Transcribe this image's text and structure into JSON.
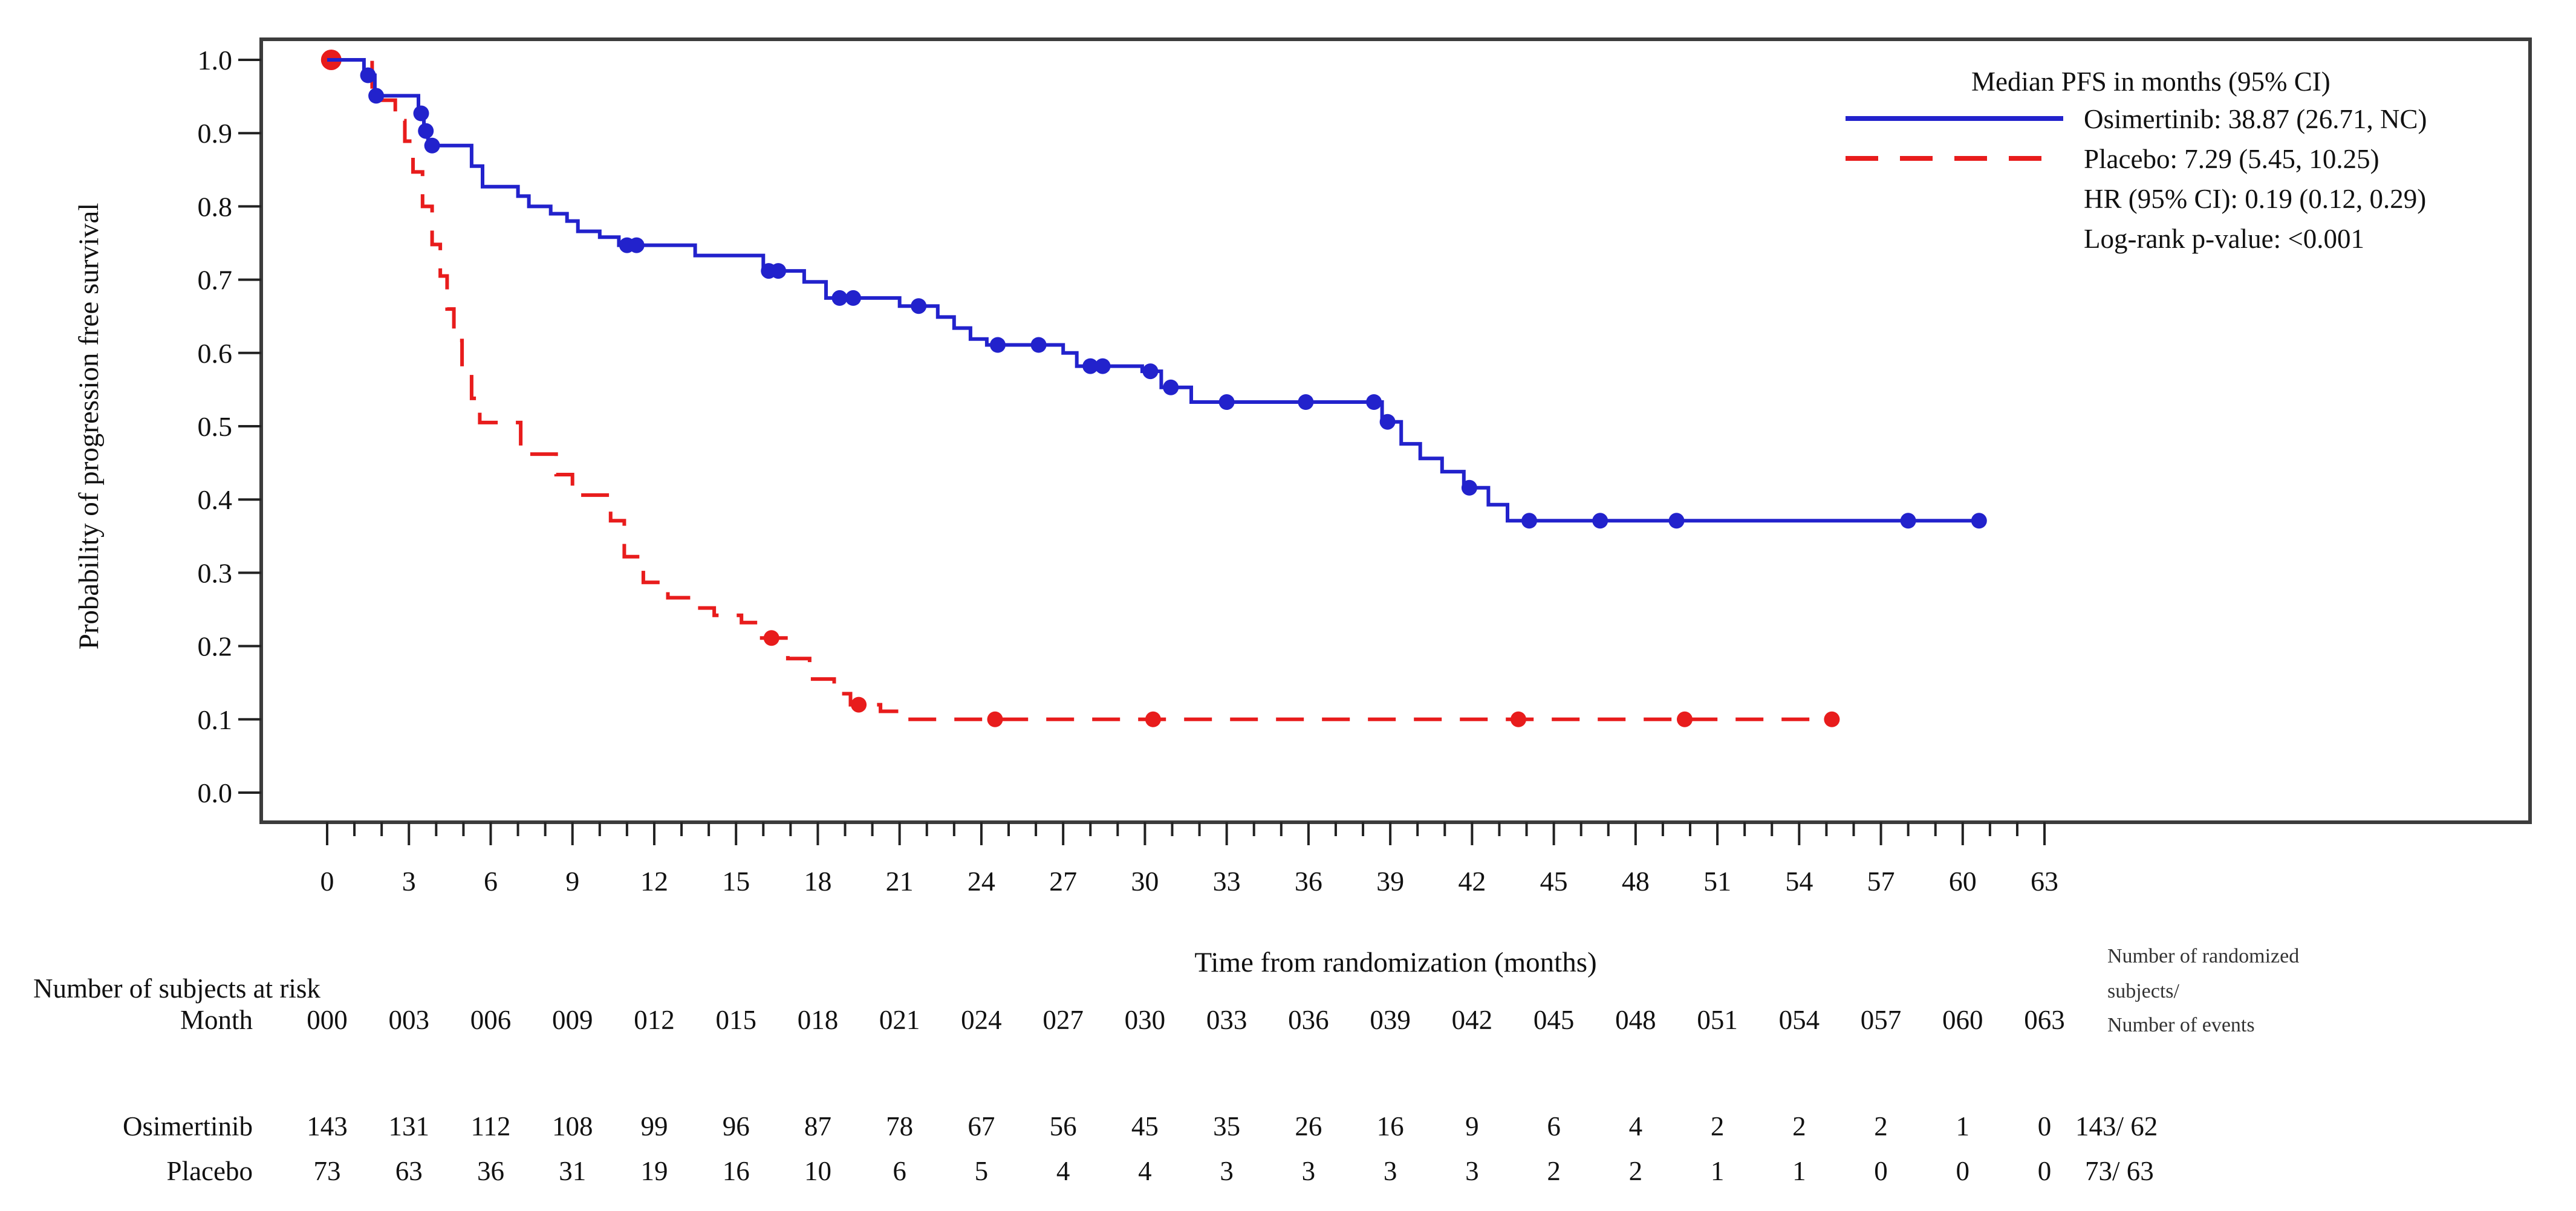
{
  "axes": {
    "x": {
      "label": "Time from randomization (months)",
      "ticks": [
        0,
        3,
        6,
        9,
        12,
        15,
        18,
        21,
        24,
        27,
        30,
        33,
        36,
        39,
        42,
        45,
        48,
        51,
        54,
        57,
        60,
        63
      ],
      "minor_step": 1,
      "range": [
        0,
        63
      ]
    },
    "y": {
      "label": "Probability of progression free survival",
      "ticks": [
        0.0,
        0.1,
        0.2,
        0.3,
        0.4,
        0.5,
        0.6,
        0.7,
        0.8,
        0.9,
        1.0
      ],
      "range": [
        0.0,
        1.0
      ]
    }
  },
  "legend": {
    "title": "Median PFS in months (95% CI)",
    "osimertinib_label": "Osimertinib: 38.87 (26.71, NC)",
    "placebo_label": "Placebo: 7.29 (5.45, 10.25)",
    "hr_text": "HR (95% CI): 0.19 (0.12, 0.29)",
    "logrank_text": "Log-rank p-value: <0.001"
  },
  "colors": {
    "osimertinib": "#2222cc",
    "placebo": "#e81c1c",
    "frame": "#3c3c3c",
    "tick": "#222222"
  },
  "chart_data": {
    "type": "line",
    "subtype": "kaplan-meier-step",
    "title": "",
    "xlabel": "Time from randomization (months)",
    "ylabel": "Probability of progression free survival",
    "xlim": [
      0,
      63
    ],
    "ylim": [
      0.0,
      1.0
    ],
    "x_ticks": [
      0,
      3,
      6,
      9,
      12,
      15,
      18,
      21,
      24,
      27,
      30,
      33,
      36,
      39,
      42,
      45,
      48,
      51,
      54,
      57,
      60,
      63
    ],
    "y_ticks": [
      0.0,
      0.1,
      0.2,
      0.3,
      0.4,
      0.5,
      0.6,
      0.7,
      0.8,
      0.9,
      1.0
    ],
    "legend_position": "top-right",
    "grid": false,
    "annotations": {
      "median_header": "Median PFS in months (95% CI)",
      "hr": "HR (95% CI): 0.19 (0.12, 0.29)",
      "logrank": "Log-rank p-value: <0.001"
    },
    "series": [
      {
        "name": "Osimertinib",
        "median": "38.87 (26.71, NC)",
        "color": "#2222cc",
        "line_style": "solid",
        "end_time": 60.7,
        "steps": [
          [
            0,
            1.0
          ],
          [
            1.35,
            0.979
          ],
          [
            1.75,
            0.951
          ],
          [
            3.35,
            0.927
          ],
          [
            3.55,
            0.903
          ],
          [
            3.7,
            0.883
          ],
          [
            5.3,
            0.855
          ],
          [
            5.7,
            0.827
          ],
          [
            7.0,
            0.814
          ],
          [
            7.4,
            0.8
          ],
          [
            8.2,
            0.79
          ],
          [
            8.8,
            0.78
          ],
          [
            9.2,
            0.766
          ],
          [
            10.0,
            0.758
          ],
          [
            10.7,
            0.747
          ],
          [
            13.5,
            0.733
          ],
          [
            16.0,
            0.712
          ],
          [
            17.5,
            0.697
          ],
          [
            18.3,
            0.675
          ],
          [
            21.0,
            0.664
          ],
          [
            22.4,
            0.649
          ],
          [
            23.0,
            0.634
          ],
          [
            23.6,
            0.619
          ],
          [
            24.2,
            0.611
          ],
          [
            27.0,
            0.6
          ],
          [
            27.5,
            0.582
          ],
          [
            29.9,
            0.575
          ],
          [
            30.6,
            0.553
          ],
          [
            31.7,
            0.533
          ],
          [
            38.7,
            0.506
          ],
          [
            39.4,
            0.476
          ],
          [
            40.1,
            0.456
          ],
          [
            40.9,
            0.438
          ],
          [
            41.7,
            0.416
          ],
          [
            42.6,
            0.393
          ],
          [
            43.3,
            0.371
          ]
        ],
        "censor_marks": [
          [
            1.5,
            0.979
          ],
          [
            1.8,
            0.951
          ],
          [
            3.45,
            0.927
          ],
          [
            3.62,
            0.903
          ],
          [
            3.85,
            0.883
          ],
          [
            11.0,
            0.747
          ],
          [
            11.35,
            0.747
          ],
          [
            16.2,
            0.712
          ],
          [
            16.55,
            0.712
          ],
          [
            18.8,
            0.675
          ],
          [
            19.3,
            0.675
          ],
          [
            21.7,
            0.664
          ],
          [
            24.6,
            0.611
          ],
          [
            26.1,
            0.611
          ],
          [
            28.0,
            0.582
          ],
          [
            28.45,
            0.582
          ],
          [
            30.2,
            0.575
          ],
          [
            30.95,
            0.553
          ],
          [
            33.0,
            0.533
          ],
          [
            35.9,
            0.533
          ],
          [
            38.4,
            0.533
          ],
          [
            38.9,
            0.506
          ],
          [
            41.9,
            0.416
          ],
          [
            44.1,
            0.371
          ],
          [
            46.7,
            0.371
          ],
          [
            49.5,
            0.371
          ],
          [
            58.0,
            0.371
          ],
          [
            60.6,
            0.371
          ]
        ]
      },
      {
        "name": "Placebo",
        "median": "7.29 (5.45, 10.25)",
        "color": "#e81c1c",
        "line_style": "dashed",
        "end_time": 55.3,
        "steps": [
          [
            0,
            1.0
          ],
          [
            1.65,
            0.945
          ],
          [
            2.5,
            0.917
          ],
          [
            2.85,
            0.889
          ],
          [
            3.15,
            0.847
          ],
          [
            3.5,
            0.8
          ],
          [
            3.85,
            0.748
          ],
          [
            4.15,
            0.705
          ],
          [
            4.4,
            0.66
          ],
          [
            4.65,
            0.617
          ],
          [
            4.95,
            0.576
          ],
          [
            5.3,
            0.538
          ],
          [
            5.6,
            0.505
          ],
          [
            7.1,
            0.462
          ],
          [
            8.4,
            0.434
          ],
          [
            9.0,
            0.406
          ],
          [
            10.4,
            0.371
          ],
          [
            10.9,
            0.322
          ],
          [
            11.6,
            0.287
          ],
          [
            12.5,
            0.266
          ],
          [
            13.5,
            0.252
          ],
          [
            14.2,
            0.242
          ],
          [
            15.2,
            0.232
          ],
          [
            15.8,
            0.211
          ],
          [
            16.9,
            0.183
          ],
          [
            17.7,
            0.155
          ],
          [
            18.6,
            0.135
          ],
          [
            19.2,
            0.12
          ],
          [
            20.3,
            0.111
          ],
          [
            21.3,
            0.1
          ]
        ],
        "censor_marks": [
          [
            0.15,
            1.0
          ],
          [
            16.3,
            0.211
          ],
          [
            19.5,
            0.12
          ],
          [
            24.5,
            0.1
          ],
          [
            30.3,
            0.1
          ],
          [
            43.7,
            0.1
          ],
          [
            49.8,
            0.1
          ],
          [
            55.2,
            0.1
          ]
        ]
      }
    ]
  },
  "risk_table": {
    "title": "Number of subjects at risk",
    "month_label": "Month",
    "months": [
      "000",
      "003",
      "006",
      "009",
      "012",
      "015",
      "018",
      "021",
      "024",
      "027",
      "030",
      "033",
      "036",
      "039",
      "042",
      "045",
      "048",
      "051",
      "054",
      "057",
      "060",
      "063"
    ],
    "rows": [
      {
        "label": "Osimertinib",
        "counts": [
          143,
          131,
          112,
          108,
          99,
          96,
          87,
          78,
          67,
          56,
          45,
          35,
          26,
          16,
          9,
          6,
          4,
          2,
          2,
          2,
          1,
          0
        ],
        "summary": "143/ 62"
      },
      {
        "label": "Placebo",
        "counts": [
          73,
          63,
          36,
          31,
          19,
          16,
          10,
          6,
          5,
          4,
          4,
          3,
          3,
          3,
          3,
          2,
          2,
          1,
          1,
          0,
          0,
          0
        ],
        "summary": "73/ 63"
      }
    ],
    "summary_header_line1": "Number of randomized",
    "summary_header_line2": "subjects/",
    "summary_header_line3": "Number of events"
  }
}
